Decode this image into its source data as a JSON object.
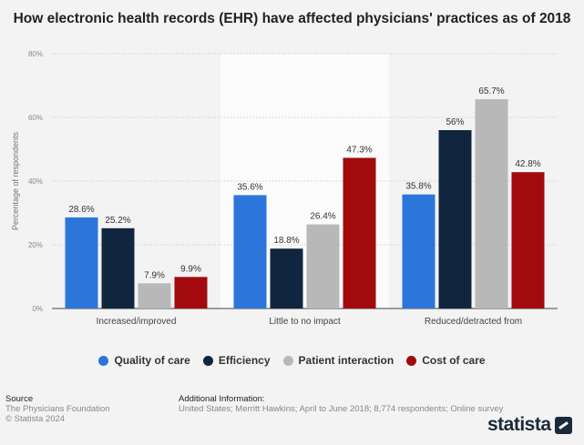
{
  "chart_data": {
    "type": "bar",
    "title": "How electronic health records (EHR) have affected physicians' practices as of 2018",
    "ylabel": "Percentage of respondents",
    "xlabel": "",
    "ylim": [
      0,
      80
    ],
    "yticks": [
      "0%",
      "20%",
      "40%",
      "60%",
      "80%"
    ],
    "categories": [
      "Increased/improved",
      "Little to no impact",
      "Reduced/detracted from"
    ],
    "series": [
      {
        "name": "Quality of care",
        "color": "#2c76db",
        "values": [
          28.6,
          35.6,
          35.8
        ],
        "labels": [
          "28.6%",
          "35.6%",
          "35.8%"
        ]
      },
      {
        "name": "Efficiency",
        "color": "#10263f",
        "values": [
          25.2,
          18.8,
          56
        ],
        "labels": [
          "25.2%",
          "18.8%",
          "56%"
        ]
      },
      {
        "name": "Patient interaction",
        "color": "#b8b8b8",
        "values": [
          7.9,
          26.4,
          65.7
        ],
        "labels": [
          "7.9%",
          "26.4%",
          "65.7%"
        ]
      },
      {
        "name": "Cost of care",
        "color": "#a20a0e",
        "values": [
          9.9,
          47.3,
          42.8
        ],
        "labels": [
          "9.9%",
          "47.3%",
          "42.8%"
        ]
      }
    ],
    "grid": true,
    "legend": "bottom"
  },
  "footer": {
    "source_title": "Source",
    "source_lines": [
      "The Physicians Foundation",
      "© Statista 2024"
    ],
    "info_title": "Additional Information:",
    "info_text": "United States; Merritt Hawkins; April to June 2018; 8,774 respondents; Online survey"
  },
  "brand": {
    "name": "statista"
  }
}
